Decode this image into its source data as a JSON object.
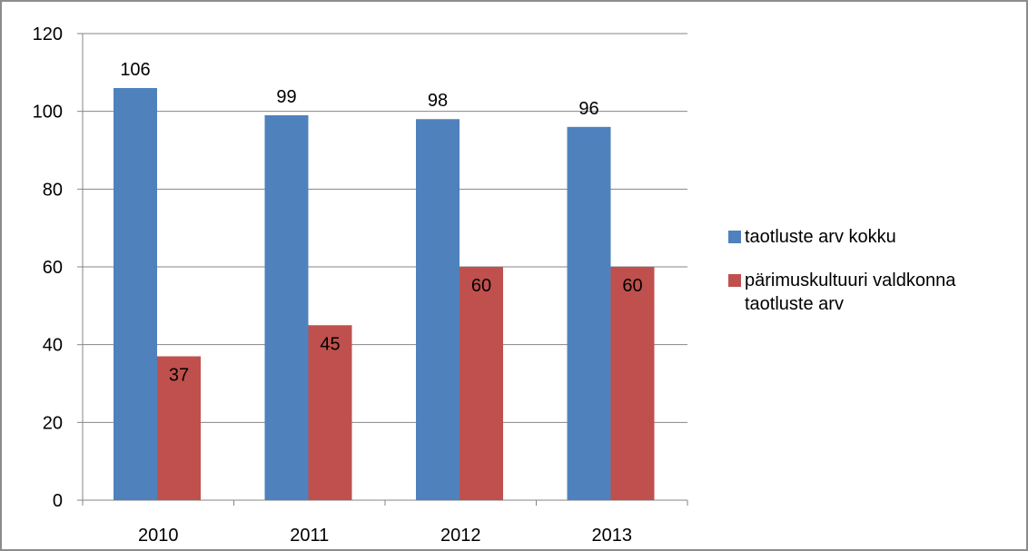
{
  "chart_data": {
    "type": "bar",
    "categories": [
      "2010",
      "2011",
      "2012",
      "2013"
    ],
    "series": [
      {
        "name": "taotluste arv kokku",
        "values": [
          106,
          99,
          98,
          96
        ],
        "color": "#4f81bd"
      },
      {
        "name": "pärimuskultuuri valdkonna taotluste arv",
        "values": [
          37,
          45,
          60,
          60
        ],
        "color": "#c0504d"
      }
    ],
    "yticks": [
      "0",
      "20",
      "40",
      "60",
      "80",
      "100",
      "120"
    ],
    "ylim": [
      0,
      120
    ],
    "grid": true,
    "legend_position": "right"
  }
}
